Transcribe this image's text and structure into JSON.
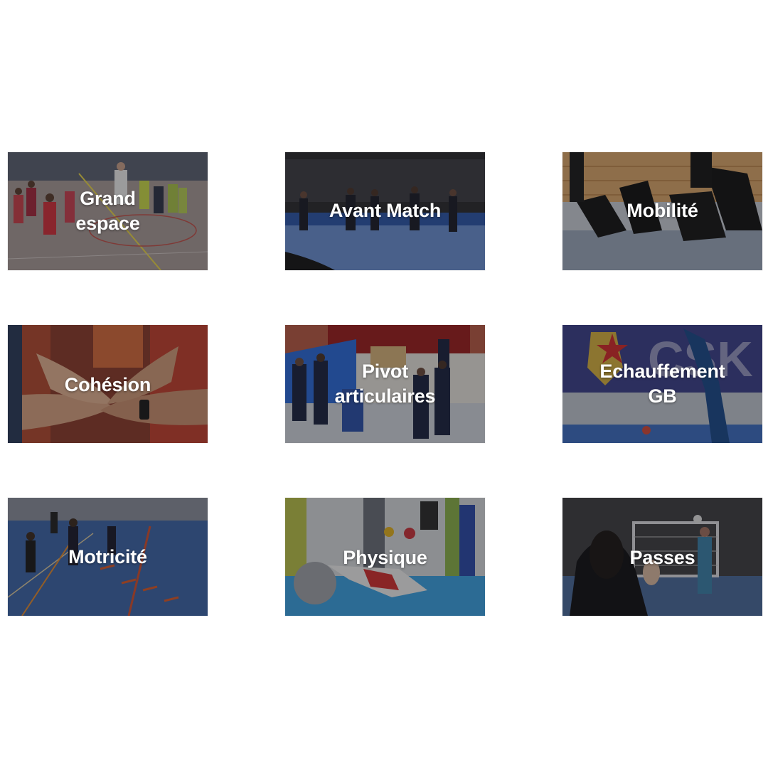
{
  "tiles": [
    {
      "label": "Grand\nespace"
    },
    {
      "label": "Avant Match"
    },
    {
      "label": "Mobilité"
    },
    {
      "label": "Cohésion"
    },
    {
      "label": "Pivot\narticulaires"
    },
    {
      "label": "Echauffement\nGB"
    },
    {
      "label": "Motricité"
    },
    {
      "label": "Physique"
    },
    {
      "label": "Passes"
    }
  ],
  "colors": {
    "background": "#ffffff",
    "label_text": "#ffffff",
    "overlay": "#141418"
  }
}
